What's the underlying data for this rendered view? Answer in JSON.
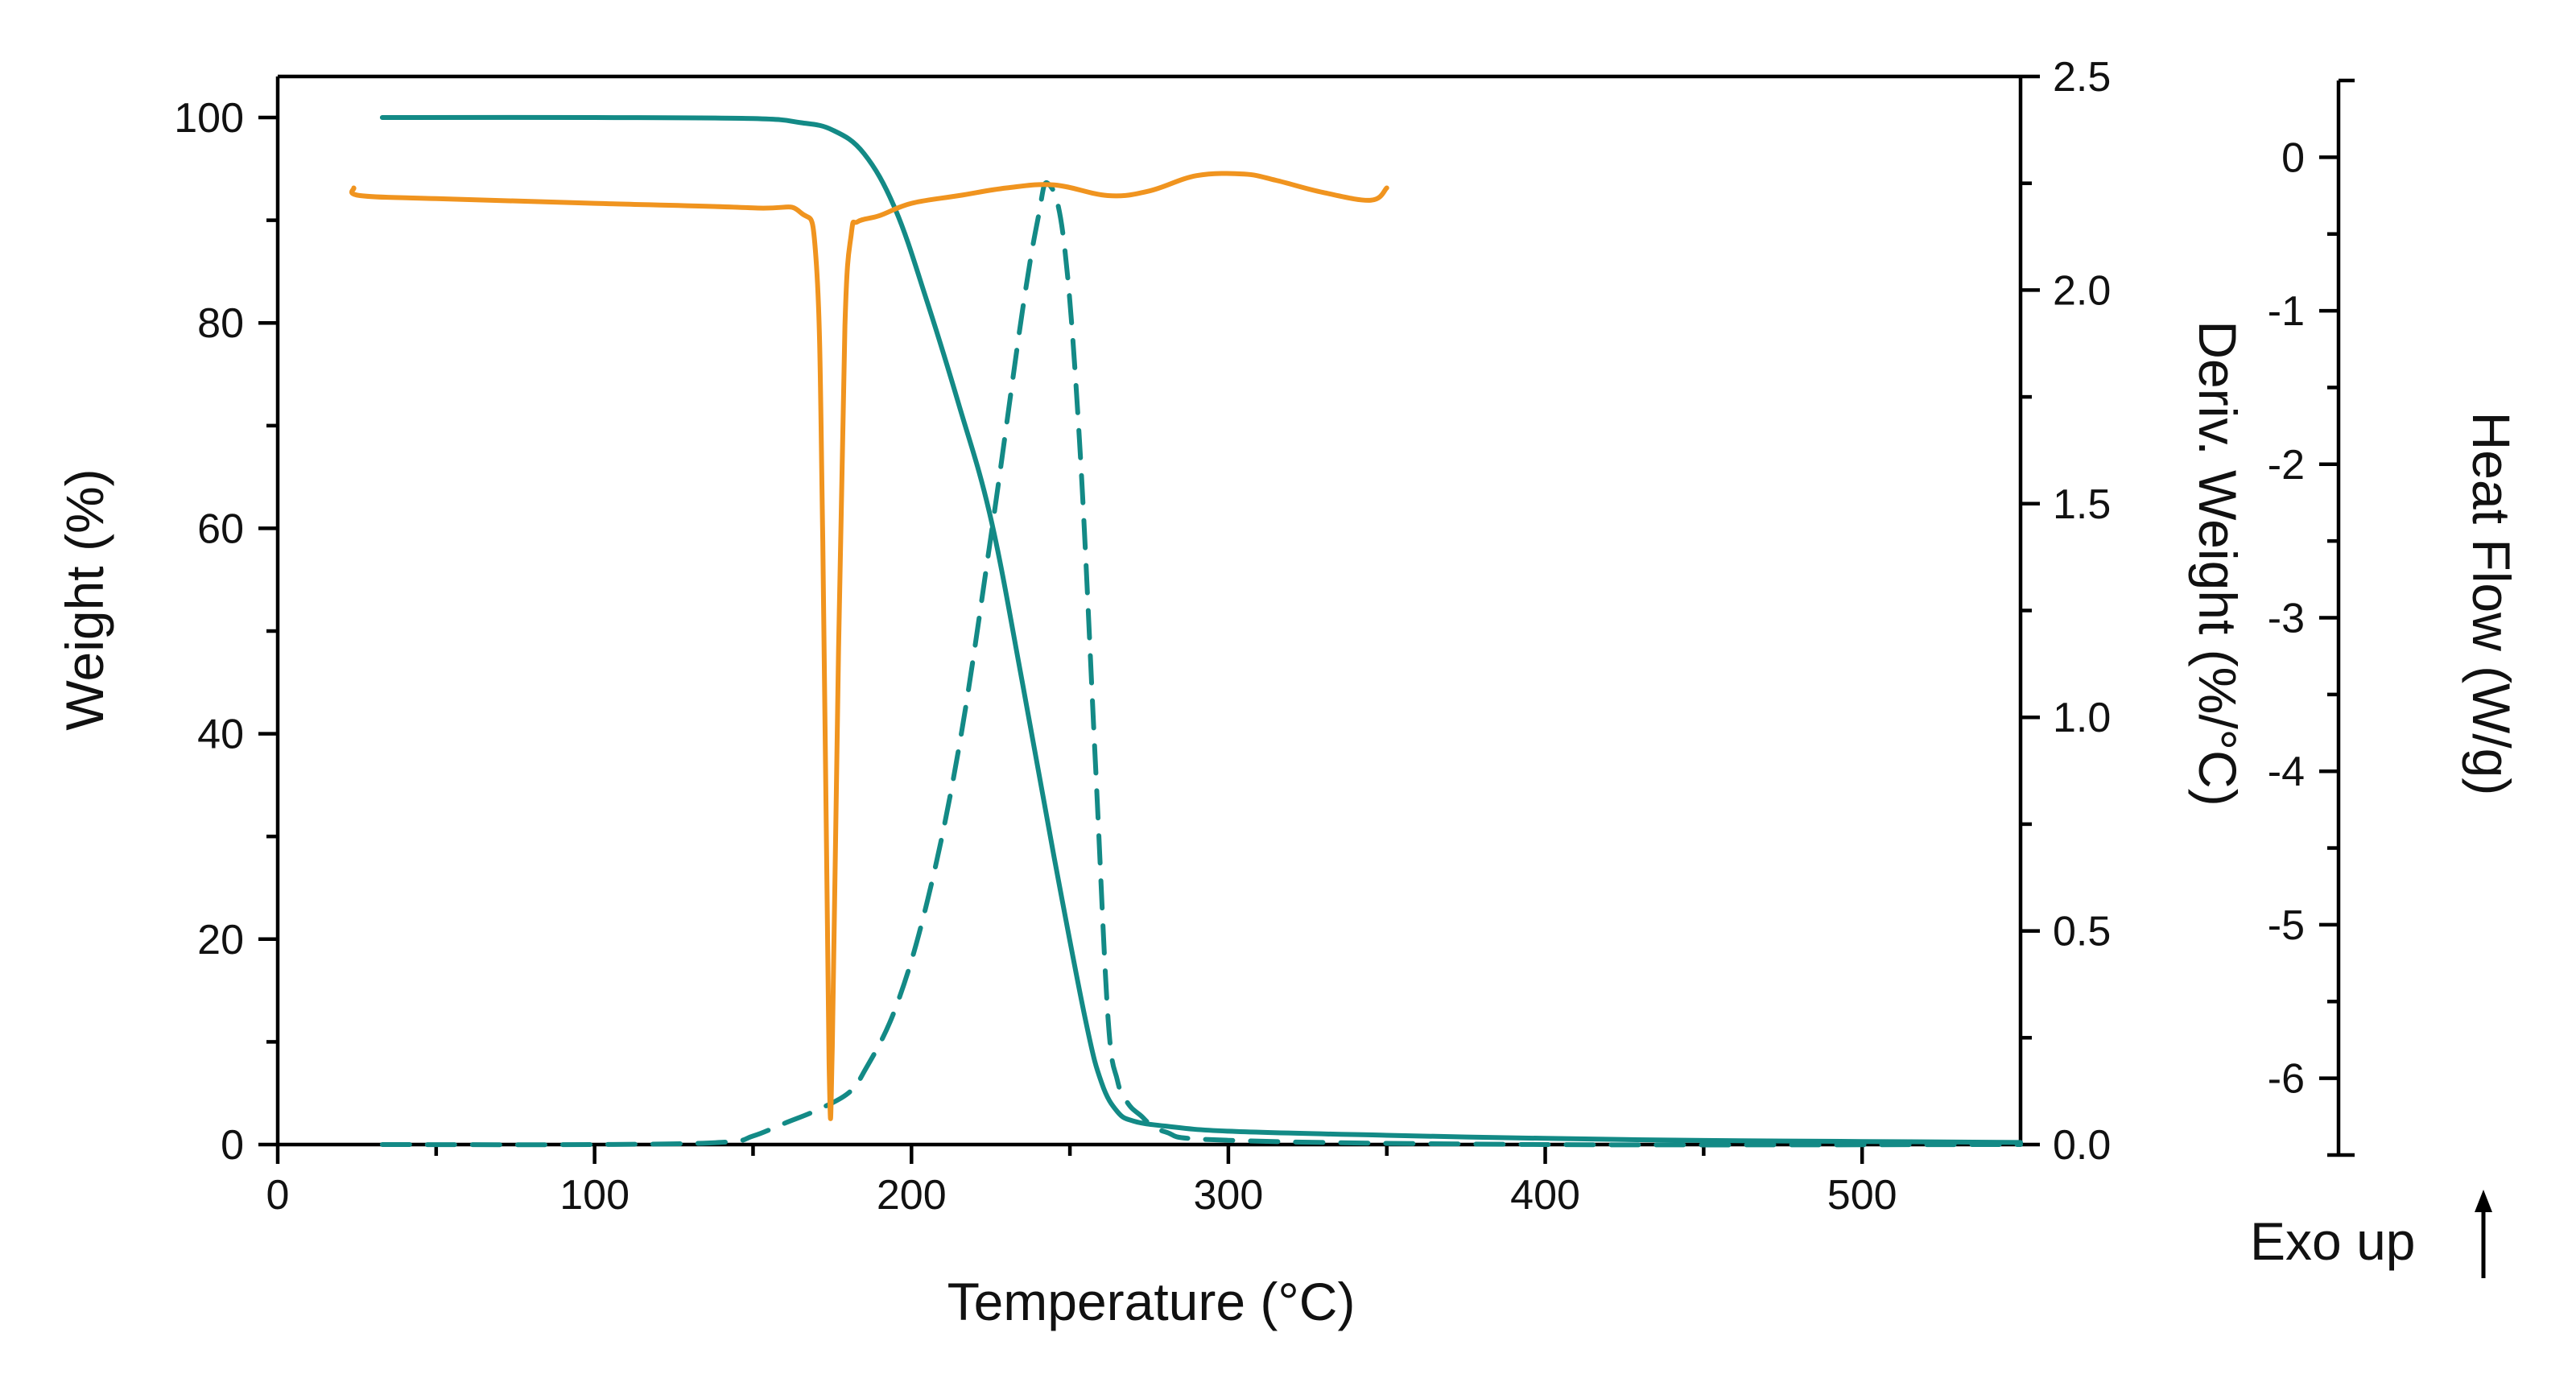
{
  "chart_data": {
    "type": "line",
    "title": "",
    "xlabel": "Temperature (°C)",
    "xlim": [
      0,
      550
    ],
    "x_ticks": [
      0,
      100,
      200,
      300,
      400,
      500
    ],
    "axes": {
      "weight": {
        "label": "Weight (%)",
        "lim": [
          0,
          104
        ],
        "ticks": [
          0,
          20,
          40,
          60,
          80,
          100
        ]
      },
      "deriv": {
        "label": "Deriv. Weight (%/°C)",
        "lim": [
          0,
          2.5
        ],
        "ticks": [
          "0.0",
          "0.5",
          "1.0",
          "1.5",
          "2.0",
          "2.5"
        ]
      },
      "heat": {
        "label": "Heat Flow (W/g)",
        "lim": [
          -6.5,
          0.5
        ],
        "ticks": [
          "0",
          "-1",
          "-2",
          "-3",
          "-4",
          "-5",
          "-6"
        ]
      }
    },
    "annotation": {
      "text": "Exo up",
      "arrow": "up"
    },
    "series": [
      {
        "name": "Weight",
        "axis": "weight",
        "color": "#138a86",
        "style": "solid",
        "x": [
          33,
          100,
          150,
          165,
          175,
          185,
          195,
          205,
          215,
          225,
          235,
          245,
          255,
          260,
          265,
          270,
          280,
          300,
          350,
          400,
          450,
          500,
          550
        ],
        "y": [
          100,
          100,
          99.9,
          99.5,
          98.8,
          96.5,
          91,
          82,
          72,
          61,
          45,
          28,
          12,
          6,
          3.2,
          2.3,
          1.8,
          1.3,
          0.9,
          0.6,
          0.4,
          0.3,
          0.2
        ]
      },
      {
        "name": "Deriv. Weight",
        "axis": "deriv",
        "color": "#138a86",
        "style": "dashed",
        "x": [
          33,
          100,
          140,
          150,
          160,
          170,
          180,
          185,
          195,
          205,
          215,
          225,
          235,
          240,
          243,
          248,
          253,
          258,
          262,
          265,
          268,
          272,
          280,
          300,
          400,
          550
        ],
        "y": [
          0.0,
          0.0,
          0.005,
          0.02,
          0.05,
          0.08,
          0.12,
          0.17,
          0.32,
          0.57,
          0.93,
          1.42,
          1.95,
          2.17,
          2.25,
          2.12,
          1.65,
          0.9,
          0.3,
          0.15,
          0.1,
          0.07,
          0.03,
          0.01,
          0.0,
          0.0
        ]
      },
      {
        "name": "Heat Flow",
        "axis": "heat",
        "color": "#f0941f",
        "style": "solid",
        "x": [
          24,
          26,
          50,
          100,
          150,
          165,
          170,
          172,
          174,
          175,
          177,
          179,
          181,
          183,
          190,
          200,
          215,
          230,
          245,
          262,
          275,
          290,
          305,
          315,
          330,
          345,
          350
        ],
        "y": [
          -0.2,
          -0.25,
          -0.27,
          -0.3,
          -0.33,
          -0.36,
          -0.7,
          -2.5,
          -5.9,
          -5.8,
          -3.2,
          -1.1,
          -0.5,
          -0.42,
          -0.38,
          -0.3,
          -0.25,
          -0.2,
          -0.18,
          -0.25,
          -0.22,
          -0.12,
          -0.11,
          -0.15,
          -0.23,
          -0.28,
          -0.2
        ]
      }
    ]
  }
}
